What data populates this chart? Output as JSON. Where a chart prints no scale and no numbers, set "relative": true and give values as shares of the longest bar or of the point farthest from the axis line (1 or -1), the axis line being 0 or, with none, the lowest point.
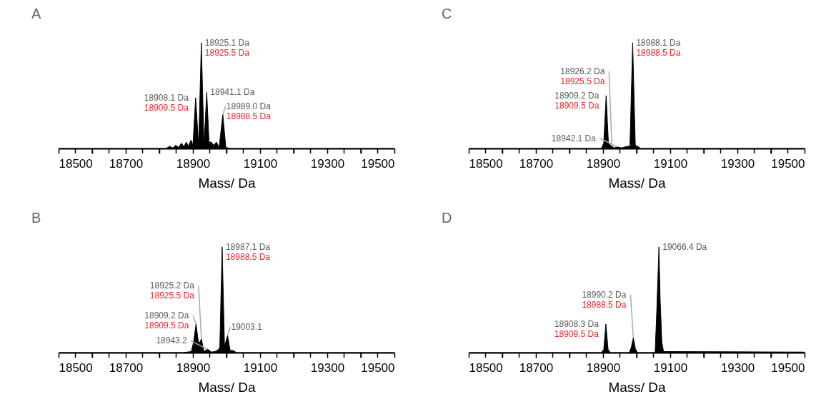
{
  "chart_data": [
    {
      "type": "area",
      "title": "A",
      "xlabel": "Mass/ Da",
      "relative": true,
      "xlim": [
        18500,
        19500
      ],
      "xticks": [
        18500,
        {
          "value": 18550,
          "label": null
        },
        {
          "value": 18600,
          "label": null
        },
        {
          "value": 18650,
          "label": null
        },
        18700,
        {
          "value": 18750,
          "label": null
        },
        {
          "value": 18800,
          "label": null
        },
        {
          "value": 18850,
          "label": null
        },
        18900,
        {
          "value": 18950,
          "label": null
        },
        {
          "value": 19000,
          "label": null
        },
        {
          "value": 19050,
          "label": null
        },
        19100,
        {
          "value": 19150,
          "label": null
        },
        {
          "value": 19200,
          "label": null
        },
        {
          "value": 19250,
          "label": null
        },
        19300,
        {
          "value": 19350,
          "label": null
        },
        {
          "value": 19400,
          "label": null
        },
        {
          "value": 19450,
          "label": null
        },
        19500
      ],
      "series": [
        {
          "color": "#000000",
          "x": [
            18500,
            18820,
            18831,
            18840,
            18849,
            18857,
            18866,
            18873,
            18880,
            18887,
            18894,
            18900,
            18908.1,
            18917,
            18925.1,
            18933,
            18941.1,
            18948,
            18955,
            18962,
            18970,
            18978,
            18989,
            18998,
            19010,
            19500
          ],
          "values": [
            0,
            0,
            0.02,
            0.005,
            0.03,
            0.01,
            0.05,
            0.015,
            0.06,
            0.02,
            0.08,
            0.03,
            0.48,
            0.02,
            1,
            0.02,
            0.53,
            0.06,
            0.06,
            0.03,
            0.06,
            0.01,
            0.32,
            0.01,
            0,
            0
          ]
        }
      ],
      "annotations": [
        {
          "text": "18925.1 Da\n18925.5 Da",
          "x": 18925.1,
          "y": 1
        },
        {
          "text": "18908.1 Da\n18909.5 Da",
          "x": 18908.1,
          "y": 0.48
        },
        {
          "text": "18941.1 Da",
          "x": 18941.1,
          "y": 0.53
        },
        {
          "text": "18989.0 Da\n18988.5 Da",
          "x": 18989,
          "y": 0.32
        }
      ]
    },
    {
      "type": "area",
      "title": "C",
      "xlabel": "Mass/ Da",
      "relative": true,
      "xlim": [
        18500,
        19500
      ],
      "xticks": [
        18500,
        {
          "value": 18550,
          "label": null
        },
        {
          "value": 18600,
          "label": null
        },
        {
          "value": 18650,
          "label": null
        },
        18700,
        {
          "value": 18750,
          "label": null
        },
        {
          "value": 18800,
          "label": null
        },
        {
          "value": 18850,
          "label": null
        },
        18900,
        {
          "value": 18950,
          "label": null
        },
        {
          "value": 19000,
          "label": null
        },
        {
          "value": 19050,
          "label": null
        },
        19100,
        {
          "value": 19150,
          "label": null
        },
        {
          "value": 19200,
          "label": null
        },
        {
          "value": 19250,
          "label": null
        },
        19300,
        {
          "value": 19350,
          "label": null
        },
        {
          "value": 19400,
          "label": null
        },
        {
          "value": 19450,
          "label": null
        },
        19500
      ],
      "series": [
        {
          "color": "#000000",
          "x": [
            18500,
            18895,
            18902,
            18909.2,
            18916,
            18926.2,
            18934,
            18942.1,
            18955,
            18972,
            18980,
            18988.1,
            18996,
            19003,
            19012,
            19500
          ],
          "values": [
            0,
            0,
            0.05,
            0.5,
            0.05,
            0.02,
            0.005,
            0.015,
            0.005,
            0.02,
            0.02,
            1,
            0.03,
            0.02,
            0,
            0
          ]
        }
      ],
      "annotations": [
        {
          "text": "18988.1 Da\n18988.5 Da",
          "x": 18988.1,
          "y": 1
        },
        {
          "text": "18909.2 Da\n18909.5 Da",
          "x": 18909.2,
          "y": 0.5
        },
        {
          "text": "18926.2 Da\n18925.5 Da",
          "x": 18926.2,
          "y": 0.02
        },
        {
          "text": "18942.1 Da",
          "x": 18942.1,
          "y": 0.015
        }
      ]
    },
    {
      "type": "area",
      "title": "B",
      "xlabel": "Mass/ Da",
      "relative": true,
      "xlim": [
        18500,
        19500
      ],
      "xticks": [
        18500,
        {
          "value": 18550,
          "label": null
        },
        {
          "value": 18600,
          "label": null
        },
        {
          "value": 18650,
          "label": null
        },
        18700,
        {
          "value": 18750,
          "label": null
        },
        {
          "value": 18800,
          "label": null
        },
        {
          "value": 18850,
          "label": null
        },
        18900,
        {
          "value": 18950,
          "label": null
        },
        {
          "value": 19000,
          "label": null
        },
        {
          "value": 19050,
          "label": null
        },
        19100,
        {
          "value": 19150,
          "label": null
        },
        {
          "value": 19200,
          "label": null
        },
        {
          "value": 19250,
          "label": null
        },
        19300,
        {
          "value": 19350,
          "label": null
        },
        {
          "value": 19400,
          "label": null
        },
        {
          "value": 19450,
          "label": null
        },
        19500
      ],
      "series": [
        {
          "color": "#000000",
          "x": [
            18500,
            18870,
            18895,
            18902,
            18909.2,
            18917,
            18925.2,
            18933,
            18943.2,
            18955,
            18965,
            18975,
            18980,
            18987.1,
            18994,
            19003.1,
            19011,
            19020,
            19030,
            19500
          ],
          "values": [
            0,
            0,
            0.01,
            0.1,
            0.27,
            0.08,
            0.13,
            0.01,
            0.033,
            0.005,
            0.01,
            0.025,
            0.05,
            1,
            0.06,
            0.16,
            0.02,
            0.02,
            0,
            0
          ]
        }
      ],
      "annotations": [
        {
          "text": "18987.1 Da\n18988.5 Da",
          "x": 18987.1,
          "y": 1
        },
        {
          "text": "18909.2 Da\n18909.5 Da",
          "x": 18909.2,
          "y": 0.27
        },
        {
          "text": "18925.2 Da\n18925.5 Da",
          "x": 18925.2,
          "y": 0.13
        },
        {
          "text": "18943.2",
          "x": 18943.2,
          "y": 0.033
        },
        {
          "text": "19003.1",
          "x": 19003.1,
          "y": 0.16
        }
      ]
    },
    {
      "type": "area",
      "title": "D",
      "xlabel": "Mass/ Da",
      "relative": true,
      "xlim": [
        18500,
        19500
      ],
      "xticks": [
        18500,
        {
          "value": 18550,
          "label": null
        },
        {
          "value": 18600,
          "label": null
        },
        {
          "value": 18650,
          "label": null
        },
        18700,
        {
          "value": 18750,
          "label": null
        },
        {
          "value": 18800,
          "label": null
        },
        {
          "value": 18850,
          "label": null
        },
        18900,
        {
          "value": 18950,
          "label": null
        },
        {
          "value": 19000,
          "label": null
        },
        {
          "value": 19050,
          "label": null
        },
        19100,
        {
          "value": 19150,
          "label": null
        },
        {
          "value": 19200,
          "label": null
        },
        {
          "value": 19250,
          "label": null
        },
        19300,
        {
          "value": 19350,
          "label": null
        },
        {
          "value": 19400,
          "label": null
        },
        {
          "value": 19450,
          "label": null
        },
        19500
      ],
      "series": [
        {
          "color": "#000000",
          "x": [
            18500,
            18895,
            18902,
            18908.3,
            18915,
            18922,
            18978,
            18984,
            18990.2,
            18996,
            19002,
            19055,
            19060,
            19066.4,
            19070,
            19075,
            19080,
            19500
          ],
          "values": [
            0,
            0,
            0.03,
            0.27,
            0.03,
            0,
            0,
            0.05,
            0.14,
            0.04,
            0,
            0,
            0.4,
            1,
            0.5,
            0.1,
            0.01,
            0.005
          ]
        }
      ],
      "annotations": [
        {
          "text": "19066.4 Da",
          "x": 19066.4,
          "y": 1
        },
        {
          "text": "18908.3 Da\n18909.5 Da",
          "x": 18908.3,
          "y": 0.27
        },
        {
          "text": "18990.2 Da\n18988.5 Da",
          "x": 18990.2,
          "y": 0.14
        }
      ]
    }
  ]
}
